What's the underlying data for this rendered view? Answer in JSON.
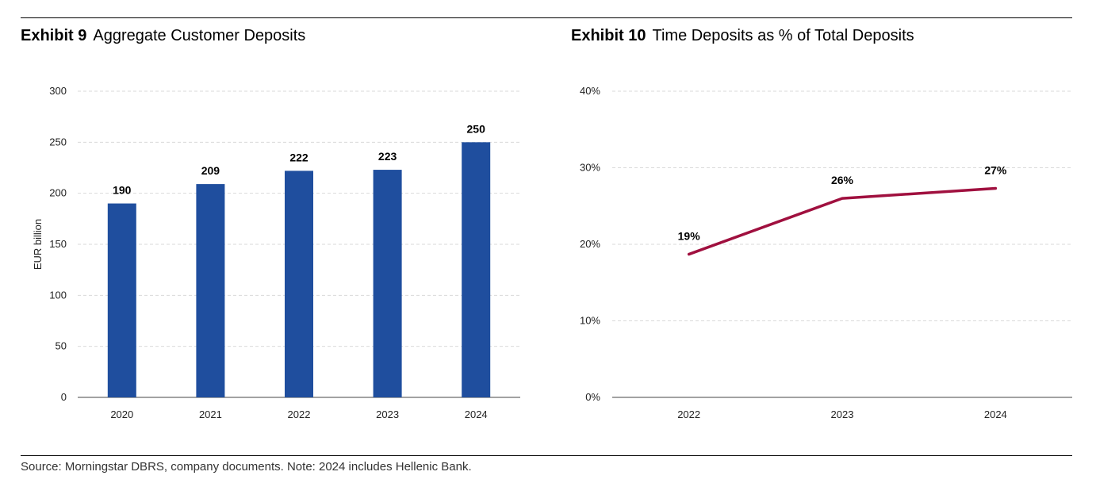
{
  "exhibits": [
    {
      "number": "Exhibit 9",
      "title": "Aggregate Customer Deposits"
    },
    {
      "number": "Exhibit 10",
      "title": "Time Deposits as % of Total Deposits"
    }
  ],
  "source": "Source: Morningstar DBRS, company documents. Note: 2024 includes Hellenic Bank.",
  "chart_data": [
    {
      "type": "bar",
      "title": "Aggregate Customer Deposits",
      "categories": [
        "2020",
        "2021",
        "2022",
        "2023",
        "2024"
      ],
      "values": [
        190,
        209,
        222,
        223,
        250
      ],
      "data_labels": [
        "190",
        "209",
        "222",
        "223",
        "250"
      ],
      "ylabel": "EUR billion",
      "xlabel": "",
      "ylim": [
        0,
        300
      ],
      "yticks": [
        0,
        50,
        100,
        150,
        200,
        250,
        300
      ],
      "ytick_labels": [
        "0",
        "50",
        "100",
        "150",
        "200",
        "250",
        "300"
      ],
      "grid": true,
      "color": "#1f4e9e"
    },
    {
      "type": "line",
      "title": "Time Deposits as % of Total Deposits",
      "categories": [
        "2022",
        "2023",
        "2024"
      ],
      "values": [
        18.7,
        26.0,
        27.3
      ],
      "data_labels": [
        "19%",
        "26%",
        "27%"
      ],
      "ylabel": "",
      "xlabel": "",
      "ylim": [
        0,
        40
      ],
      "yticks": [
        0,
        10,
        20,
        30,
        40
      ],
      "ytick_labels": [
        "0%",
        "10%",
        "20%",
        "30%",
        "40%"
      ],
      "grid": true,
      "color": "#a0103f"
    }
  ]
}
